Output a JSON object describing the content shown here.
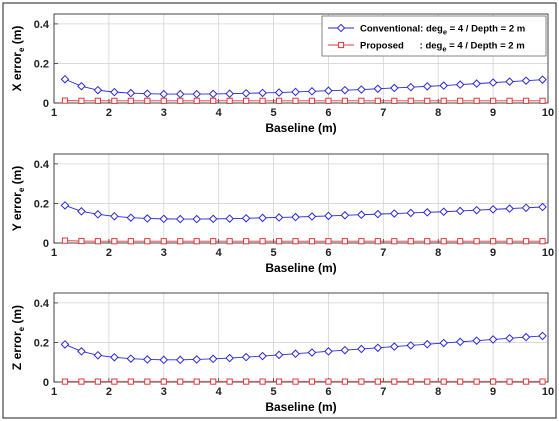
{
  "colors": {
    "conventional": "#2a2ad8",
    "proposed": "#e0393b",
    "grid": "#d4d4d4",
    "axis": "#333333"
  },
  "legend": {
    "items": [
      {
        "series": "Conventional",
        "text": "Conventional: deg",
        "sub": "e",
        "rest": " = 4 / Depth = 2 m",
        "marker": "diamond-icon"
      },
      {
        "series": "Proposed",
        "text": "Proposed      : deg",
        "sub": "e",
        "rest": " = 4 / Depth = 2 m",
        "marker": "square-icon"
      }
    ]
  },
  "chart_data": [
    {
      "type": "line",
      "title": "",
      "xlabel": "Baseline (m)",
      "ylabel_main": "X error",
      "ylabel_sub": "e",
      "ylabel_unit": " (m)",
      "xlim": [
        1,
        10
      ],
      "ylim": [
        0,
        0.45
      ],
      "xticks": [
        1,
        2,
        3,
        4,
        5,
        6,
        7,
        8,
        9,
        10
      ],
      "yticks": [
        0,
        0.2,
        0.4
      ],
      "ytick_labels": [
        "0",
        "0.2",
        "0.4"
      ],
      "grid": true,
      "x": [
        1.2,
        1.5,
        1.8,
        2.1,
        2.4,
        2.7,
        3.0,
        3.3,
        3.6,
        3.9,
        4.2,
        4.5,
        4.8,
        5.1,
        5.4,
        5.7,
        6.0,
        6.3,
        6.6,
        6.9,
        7.2,
        7.5,
        7.8,
        8.1,
        8.4,
        8.7,
        9.0,
        9.3,
        9.6,
        9.9
      ],
      "series": [
        {
          "name": "Conventional",
          "marker": "diamond",
          "values": [
            0.12,
            0.085,
            0.065,
            0.055,
            0.05,
            0.047,
            0.045,
            0.045,
            0.045,
            0.046,
            0.047,
            0.049,
            0.051,
            0.053,
            0.056,
            0.059,
            0.062,
            0.065,
            0.068,
            0.072,
            0.076,
            0.08,
            0.084,
            0.088,
            0.093,
            0.098,
            0.103,
            0.108,
            0.113,
            0.118
          ]
        },
        {
          "name": "Proposed",
          "marker": "square",
          "values": [
            0.012,
            0.011,
            0.011,
            0.011,
            0.011,
            0.011,
            0.011,
            0.011,
            0.011,
            0.011,
            0.011,
            0.011,
            0.011,
            0.011,
            0.011,
            0.011,
            0.011,
            0.011,
            0.011,
            0.011,
            0.011,
            0.011,
            0.011,
            0.011,
            0.011,
            0.011,
            0.011,
            0.011,
            0.011,
            0.011
          ]
        }
      ],
      "legend": "top-right"
    },
    {
      "type": "line",
      "title": "",
      "xlabel": "Baseline (m)",
      "ylabel_main": "Y error",
      "ylabel_sub": "e",
      "ylabel_unit": " (m)",
      "xlim": [
        1,
        10
      ],
      "ylim": [
        0,
        0.45
      ],
      "xticks": [
        1,
        2,
        3,
        4,
        5,
        6,
        7,
        8,
        9,
        10
      ],
      "yticks": [
        0,
        0.2,
        0.4
      ],
      "ytick_labels": [
        "0",
        "0.2",
        "0.4"
      ],
      "grid": true,
      "x": [
        1.2,
        1.5,
        1.8,
        2.1,
        2.4,
        2.7,
        3.0,
        3.3,
        3.6,
        3.9,
        4.2,
        4.5,
        4.8,
        5.1,
        5.4,
        5.7,
        6.0,
        6.3,
        6.6,
        6.9,
        7.2,
        7.5,
        7.8,
        8.1,
        8.4,
        8.7,
        9.0,
        9.3,
        9.6,
        9.9
      ],
      "series": [
        {
          "name": "Conventional",
          "marker": "diamond",
          "values": [
            0.19,
            0.16,
            0.145,
            0.135,
            0.128,
            0.124,
            0.122,
            0.121,
            0.121,
            0.122,
            0.123,
            0.125,
            0.127,
            0.129,
            0.131,
            0.134,
            0.137,
            0.14,
            0.143,
            0.146,
            0.149,
            0.152,
            0.155,
            0.158,
            0.162,
            0.166,
            0.17,
            0.174,
            0.178,
            0.182
          ]
        },
        {
          "name": "Proposed",
          "marker": "square",
          "values": [
            0.012,
            0.01,
            0.009,
            0.009,
            0.009,
            0.009,
            0.009,
            0.009,
            0.009,
            0.009,
            0.009,
            0.009,
            0.009,
            0.009,
            0.009,
            0.009,
            0.009,
            0.009,
            0.009,
            0.009,
            0.009,
            0.009,
            0.009,
            0.009,
            0.009,
            0.009,
            0.009,
            0.009,
            0.009,
            0.009
          ]
        }
      ]
    },
    {
      "type": "line",
      "title": "",
      "xlabel": "Baseline (m)",
      "ylabel_main": "Z error",
      "ylabel_sub": "e",
      "ylabel_unit": " (m)",
      "xlim": [
        1,
        10
      ],
      "ylim": [
        0,
        0.45
      ],
      "xticks": [
        1,
        2,
        3,
        4,
        5,
        6,
        7,
        8,
        9,
        10
      ],
      "yticks": [
        0,
        0.2,
        0.4
      ],
      "ytick_labels": [
        "0",
        "0.2",
        "0.4"
      ],
      "grid": true,
      "x": [
        1.2,
        1.5,
        1.8,
        2.1,
        2.4,
        2.7,
        3.0,
        3.3,
        3.6,
        3.9,
        4.2,
        4.5,
        4.8,
        5.1,
        5.4,
        5.7,
        6.0,
        6.3,
        6.6,
        6.9,
        7.2,
        7.5,
        7.8,
        8.1,
        8.4,
        8.7,
        9.0,
        9.3,
        9.6,
        9.9
      ],
      "series": [
        {
          "name": "Conventional",
          "marker": "diamond",
          "values": [
            0.19,
            0.155,
            0.135,
            0.125,
            0.118,
            0.114,
            0.112,
            0.112,
            0.114,
            0.117,
            0.121,
            0.126,
            0.131,
            0.137,
            0.143,
            0.149,
            0.155,
            0.161,
            0.167,
            0.173,
            0.179,
            0.185,
            0.191,
            0.197,
            0.203,
            0.209,
            0.215,
            0.221,
            0.227,
            0.233
          ]
        },
        {
          "name": "Proposed",
          "marker": "square",
          "values": [
            0.002,
            0.002,
            0.002,
            0.002,
            0.002,
            0.002,
            0.002,
            0.002,
            0.002,
            0.002,
            0.002,
            0.002,
            0.002,
            0.002,
            0.002,
            0.002,
            0.002,
            0.002,
            0.002,
            0.002,
            0.002,
            0.002,
            0.002,
            0.002,
            0.002,
            0.002,
            0.002,
            0.002,
            0.002,
            0.002
          ]
        }
      ]
    }
  ]
}
